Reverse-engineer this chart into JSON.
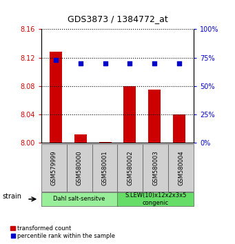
{
  "title": "GDS3873 / 1384772_at",
  "samples": [
    "GSM579999",
    "GSM580000",
    "GSM580001",
    "GSM580002",
    "GSM580003",
    "GSM580004"
  ],
  "transformed_counts": [
    8.128,
    8.012,
    8.001,
    8.08,
    8.075,
    8.04
  ],
  "percentile_ranks": [
    73,
    70,
    70,
    70,
    70,
    70
  ],
  "ylim_left": [
    8.0,
    8.16
  ],
  "ylim_right": [
    0,
    100
  ],
  "yticks_left": [
    8.0,
    8.04,
    8.08,
    8.12,
    8.16
  ],
  "yticks_right": [
    0,
    25,
    50,
    75,
    100
  ],
  "bar_color": "#cc0000",
  "dot_color": "#0000cc",
  "bar_width": 0.5,
  "groups": [
    {
      "label": "Dahl salt-sensitve",
      "start": 0,
      "end": 3,
      "color": "#99ee99"
    },
    {
      "label": "S.LEW(10)x12x2x3x5\ncongenic",
      "start": 3,
      "end": 6,
      "color": "#66dd66"
    }
  ],
  "legend_bar_label": "transformed count",
  "legend_dot_label": "percentile rank within the sample",
  "strain_label": "strain",
  "left_tick_color": "#cc0000",
  "right_tick_color": "#0000cc"
}
